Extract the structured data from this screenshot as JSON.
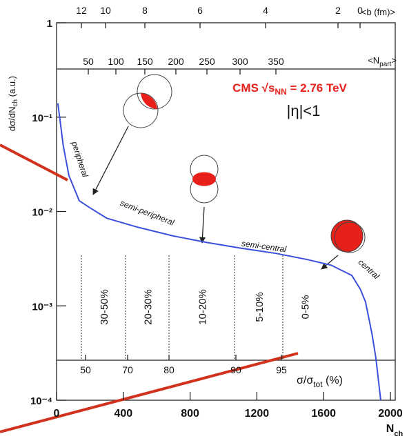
{
  "chart_data": {
    "type": "line",
    "y_label": {
      "text": "dσ/dN",
      "sub": "ch",
      "tail": " (a.u.)"
    },
    "x_label": {
      "text": "N",
      "sub": "ch"
    },
    "log_y": true,
    "xlim": [
      0,
      2000
    ],
    "xticks": [
      0,
      400,
      800,
      1200,
      1600,
      2000
    ],
    "ylim": [
      0.0001,
      1
    ],
    "yticks": [
      {
        "value": 0.0001,
        "label": "10⁻⁴"
      },
      {
        "value": 0.001,
        "label": "10⁻³"
      },
      {
        "value": 0.01,
        "label": "10⁻²"
      },
      {
        "value": 0.1,
        "label": "10⁻¹"
      },
      1
    ],
    "series": [
      {
        "color": "#3b4fdc",
        "x": [
          8,
          40,
          74,
          136,
          198,
          300,
          488,
          700,
          900,
          1100,
          1314,
          1500,
          1645,
          1769,
          1820,
          1851,
          1890,
          1913,
          1942
        ],
        "values": [
          0.14,
          0.05,
          0.024,
          0.013,
          0.011,
          0.0085,
          0.0068,
          0.0055,
          0.0047,
          0.0041,
          0.0036,
          0.0031,
          0.0027,
          0.0021,
          0.0015,
          0.0011,
          0.0005,
          0.00028,
          0.0001
        ]
      }
    ],
    "b_axis": {
      "label": "<b (fm)>",
      "ticks": [
        12,
        10,
        8,
        6,
        4,
        2,
        0
      ]
    },
    "npart_axis": {
      "label": {
        "text": "<N",
        "sub": "part",
        "tail": ">"
      },
      "ticks": [
        50,
        100,
        150,
        200,
        250,
        300,
        350
      ]
    },
    "centrality_axis": {
      "label": {
        "text": "σ/σ",
        "sub": "tot",
        "tail": " (%)"
      },
      "ticks": [
        50,
        70,
        80,
        90,
        95
      ]
    },
    "classes": [
      "30-50%",
      "20-30%",
      "10-20%",
      "5-10%",
      "0-5%"
    ],
    "annotations": {
      "cms": {
        "text": "CMS √s",
        "sub": "NN",
        "tail": " = 2.76 TeV"
      },
      "eta": "|η|<1",
      "regions": [
        "peripheral",
        "semi-peripheral",
        "semi-central",
        "central"
      ]
    }
  }
}
